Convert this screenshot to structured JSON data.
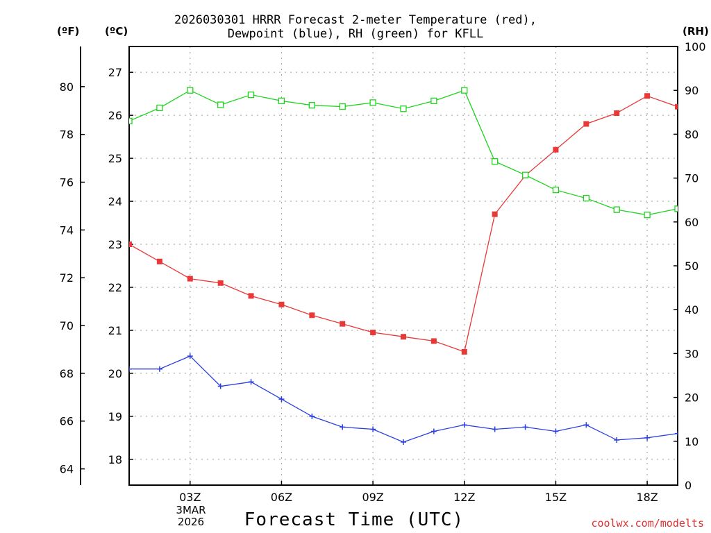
{
  "chart_data": {
    "type": "line",
    "title_line1": "2026030301 HRRR Forecast 2-meter Temperature (red),",
    "title_line2": "Dewpoint (blue), RH (green) for KFLL",
    "xlabel": "Forecast Time (UTC)",
    "credit": "coolwx.com/modelts",
    "unit_labels": {
      "fahrenheit": "(ºF)",
      "celsius": "(ºC)",
      "rh": "(RH)"
    },
    "x": [
      1,
      2,
      3,
      4,
      5,
      6,
      7,
      8,
      9,
      10,
      11,
      12,
      13,
      14,
      15,
      16,
      17,
      18,
      19
    ],
    "xlim": [
      1,
      19
    ],
    "x_ticks": [
      {
        "x": 3,
        "label": "03Z"
      },
      {
        "x": 6,
        "label": "06Z"
      },
      {
        "x": 9,
        "label": "09Z"
      },
      {
        "x": 12,
        "label": "12Z"
      },
      {
        "x": 15,
        "label": "15Z"
      },
      {
        "x": 18,
        "label": "18Z"
      }
    ],
    "date_label": [
      "3MAR",
      "2026"
    ],
    "celsius_axis": {
      "min": 17.4,
      "max": 27.6,
      "ticks": [
        18,
        19,
        20,
        21,
        22,
        23,
        24,
        25,
        26,
        27
      ]
    },
    "fahrenheit_axis": {
      "min": 63.32,
      "max": 81.68,
      "ticks": [
        64,
        66,
        68,
        70,
        72,
        74,
        76,
        78,
        80
      ]
    },
    "rh_axis": {
      "min": 0,
      "max": 100,
      "ticks": [
        0,
        10,
        20,
        30,
        40,
        50,
        60,
        70,
        80,
        90,
        100
      ]
    },
    "series": [
      {
        "name": "Temperature",
        "axis": "celsius",
        "color": "#e83838",
        "marker": "filled-square",
        "values": [
          23.0,
          22.6,
          22.2,
          22.1,
          21.8,
          21.6,
          21.35,
          21.15,
          20.95,
          20.85,
          20.75,
          20.5,
          23.7,
          24.6,
          25.2,
          25.8,
          26.05,
          26.45,
          26.2
        ]
      },
      {
        "name": "Dewpoint",
        "axis": "celsius",
        "color": "#2a3fe0",
        "marker": "plus",
        "values": [
          20.1,
          20.1,
          20.4,
          19.7,
          19.8,
          19.4,
          19.0,
          18.75,
          18.7,
          18.4,
          18.65,
          18.8,
          18.7,
          18.75,
          18.65,
          18.8,
          18.45,
          18.5,
          18.6
        ]
      },
      {
        "name": "RH",
        "axis": "rh",
        "color": "#1ed41e",
        "marker": "open-square",
        "values": [
          83,
          86,
          90,
          86.7,
          89,
          87.6,
          86.6,
          86.3,
          87.2,
          85.8,
          87.6,
          90,
          73.8,
          70.7,
          67.3,
          65.4,
          62.8,
          61.6,
          63
        ]
      }
    ]
  }
}
